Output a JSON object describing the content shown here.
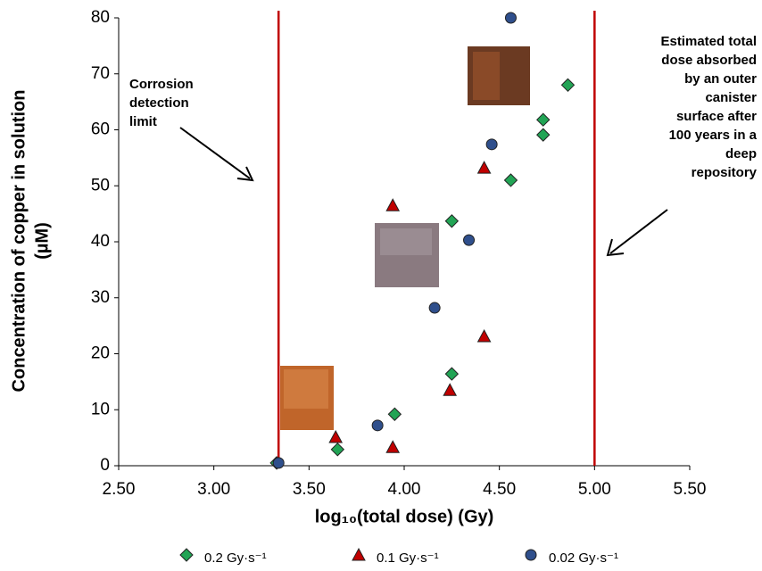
{
  "chart_data": {
    "type": "scatter",
    "x_label": "log₁₀(total dose) (Gy)",
    "y_label_lines": [
      "Concentration of copper in solution",
      "(µM)"
    ],
    "xlim": [
      2.5,
      5.5
    ],
    "xticks": [
      {
        "value": 2.5,
        "label": "2.50"
      },
      {
        "value": 3.0,
        "label": "3.00"
      },
      {
        "value": 3.5,
        "label": "3.50"
      },
      {
        "value": 4.0,
        "label": "4.00"
      },
      {
        "value": 4.5,
        "label": "4.50"
      },
      {
        "value": 5.0,
        "label": "5.00"
      },
      {
        "value": 5.5,
        "label": "5.50"
      }
    ],
    "ylim": [
      0,
      80
    ],
    "yticks": [
      0,
      10,
      20,
      30,
      40,
      50,
      60,
      70,
      80
    ],
    "vlines": [
      {
        "value": 3.34,
        "color": "#c00000"
      },
      {
        "value": 5.0,
        "color": "#c00000"
      }
    ],
    "annotations": [
      {
        "lines": [
          "Corrosion",
          "detection",
          "limit"
        ]
      },
      {
        "lines": [
          "Estimated total",
          "dose absorbed",
          "by an outer",
          "canister",
          "surface after",
          "100 years in a",
          "deep",
          "repository"
        ]
      }
    ],
    "series": [
      {
        "name": "0.2 Gy·s⁻¹",
        "marker": "diamond",
        "color": "#22a455",
        "x": [
          3.33,
          3.65,
          3.95,
          4.25,
          4.25,
          4.56,
          4.73,
          4.73,
          4.86
        ],
        "values": [
          0.5,
          2.9,
          9.2,
          16.4,
          43.7,
          51,
          59.1,
          61.8,
          68
        ]
      },
      {
        "name": "0.1 Gy·s⁻¹",
        "marker": "triangle",
        "color": "#c00000",
        "x": [
          3.64,
          3.94,
          3.94,
          4.24,
          4.42,
          4.42
        ],
        "values": [
          5.1,
          3.3,
          46.5,
          13.5,
          23.1,
          53.2
        ]
      },
      {
        "name": "0.02 Gy·s⁻¹",
        "marker": "circle",
        "color": "#2f4f8c",
        "x": [
          3.34,
          3.86,
          4.16,
          4.34,
          4.46,
          4.56
        ],
        "values": [
          0.5,
          7.2,
          28.2,
          40.3,
          57.4,
          80
        ]
      }
    ]
  }
}
